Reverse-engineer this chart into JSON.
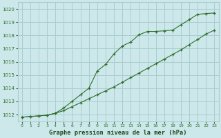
{
  "title": "Graphe pression niveau de la mer (hPa)",
  "bg_color": "#cde8ea",
  "plot_bg_color": "#cde8ea",
  "grid_color": "#aacdd0",
  "line_color": "#2d6e2d",
  "text_color": "#2d6e2d",
  "xlabel_color": "#1a4a1a",
  "x_hours": [
    0,
    1,
    2,
    3,
    4,
    5,
    6,
    7,
    8,
    9,
    10,
    11,
    12,
    13,
    14,
    15,
    16,
    17,
    18,
    19,
    20,
    21,
    22,
    23
  ],
  "line1_straight": [
    1011.8,
    1011.85,
    1011.9,
    1011.95,
    1012.1,
    1012.3,
    1012.6,
    1012.9,
    1013.2,
    1013.5,
    1013.8,
    1014.1,
    1014.45,
    1014.8,
    1015.15,
    1015.5,
    1015.85,
    1016.2,
    1016.55,
    1016.9,
    1017.3,
    1017.7,
    1018.1,
    1018.4
  ],
  "line2_bumpy": [
    1011.8,
    1011.85,
    1011.9,
    1011.95,
    1012.1,
    1012.5,
    1013.0,
    1013.5,
    1014.0,
    1015.3,
    1015.8,
    1016.6,
    1017.2,
    1017.5,
    1018.05,
    1018.3,
    1018.3,
    1018.35,
    1018.4,
    1018.8,
    1019.2,
    1019.6,
    1019.65,
    1019.7
  ],
  "ylim": [
    1011.5,
    1020.5
  ],
  "yticks": [
    1012,
    1013,
    1014,
    1015,
    1016,
    1017,
    1018,
    1019,
    1020
  ],
  "xlim": [
    -0.5,
    23.5
  ],
  "xticks": [
    0,
    1,
    2,
    3,
    4,
    5,
    6,
    7,
    8,
    9,
    10,
    11,
    12,
    13,
    14,
    15,
    16,
    17,
    18,
    19,
    20,
    21,
    22,
    23
  ]
}
